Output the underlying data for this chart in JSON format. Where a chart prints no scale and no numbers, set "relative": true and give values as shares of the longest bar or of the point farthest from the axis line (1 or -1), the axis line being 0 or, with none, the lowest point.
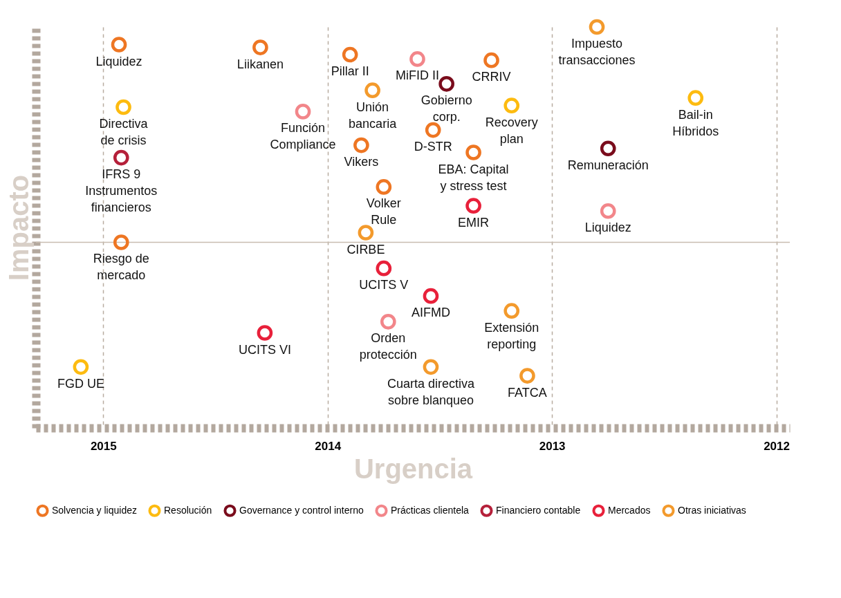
{
  "chart_data": {
    "type": "scatter",
    "relative": true,
    "xlabel": "Urgencia",
    "ylabel": "Impacto",
    "xlim": [
      2015.3,
      2011.94
    ],
    "xticks": [
      2015,
      2014,
      2013,
      2012
    ],
    "grid": "x",
    "legend": "bottom",
    "marker": "circle",
    "series": [
      {
        "name": "Solvencia y liquidez",
        "color": "#ee7623",
        "x": [
          2014.93,
          2014.3,
          2013.9,
          2013.27,
          2013.85,
          2013.53,
          2013.35,
          2013.75,
          2014.92
        ],
        "values": [
          0.956,
          0.949,
          0.931,
          0.917,
          0.705,
          0.743,
          0.687,
          0.601,
          0.463
        ]
      },
      {
        "name": "Resolución",
        "color": "#fdbb10",
        "x": [
          2014.91,
          2013.18,
          2012.36,
          2015.1
        ],
        "values": [
          0.8,
          0.804,
          0.823,
          0.152
        ]
      },
      {
        "name": "Governance y control interno",
        "color": "#7a0c1c",
        "x": [
          2013.47,
          2012.75
        ],
        "values": [
          0.858,
          0.697
        ]
      },
      {
        "name": "Prácticas clientela",
        "color": "#f2868a",
        "x": [
          2013.6,
          2014.11,
          2012.75,
          2013.73
        ],
        "values": [
          0.92,
          0.789,
          0.541,
          0.265
        ]
      },
      {
        "name": "Financiero contable",
        "color": "#b5203a",
        "x": [
          2014.92
        ],
        "values": [
          0.674
        ]
      },
      {
        "name": "Mercados",
        "color": "#e8203a",
        "x": [
          2013.35,
          2013.75,
          2013.54,
          2014.28
        ],
        "values": [
          0.554,
          0.398,
          0.329,
          0.237
        ]
      },
      {
        "name": "Otras iniciativas",
        "color": "#f39a2c",
        "x": [
          2012.8,
          2013.8,
          2013.83,
          2013.18,
          2013.54,
          2013.11
        ],
        "values": [
          1.0,
          0.842,
          0.487,
          0.292,
          0.152,
          0.13
        ]
      }
    ],
    "ref_lines": [
      {
        "axis": "y",
        "value": 0.463,
        "color": "#c8bcb0"
      }
    ],
    "annotations": [
      {
        "text": "Liquidez",
        "x": 2014.93,
        "y": 0.956
      },
      {
        "text": "Liikanen",
        "x": 2014.3,
        "y": 0.949
      },
      {
        "text": "Pillar II",
        "x": 2013.9,
        "y": 0.931
      },
      {
        "text": "CRRIV",
        "x": 2013.27,
        "y": 0.917
      },
      {
        "text": "Vikers",
        "x": 2013.85,
        "y": 0.705
      },
      {
        "text": "D-STR",
        "x": 2013.53,
        "y": 0.743
      },
      {
        "text": "EBA: Capital\ny stress test",
        "x": 2013.35,
        "y": 0.687
      },
      {
        "text": "Volker\nRule",
        "x": 2013.75,
        "y": 0.601
      },
      {
        "text": "Riesgo de\nmercado",
        "x": 2014.92,
        "y": 0.463
      },
      {
        "text": "Directiva\nde crisis",
        "x": 2014.91,
        "y": 0.8
      },
      {
        "text": "Recovery\nplan",
        "x": 2013.18,
        "y": 0.804
      },
      {
        "text": "Bail-in\nHíbridos",
        "x": 2012.36,
        "y": 0.823
      },
      {
        "text": "FGD UE",
        "x": 2015.1,
        "y": 0.152
      },
      {
        "text": "Gobierno\ncorp.",
        "x": 2013.47,
        "y": 0.858
      },
      {
        "text": "Remuneración",
        "x": 2012.75,
        "y": 0.697
      },
      {
        "text": "MiFID II",
        "x": 2013.6,
        "y": 0.92
      },
      {
        "text": "Función\nCompliance",
        "x": 2014.11,
        "y": 0.789
      },
      {
        "text": "Liquidez",
        "x": 2012.75,
        "y": 0.541
      },
      {
        "text": "Orden\nprotección",
        "x": 2013.73,
        "y": 0.265
      },
      {
        "text": "IFRS 9\nInstrumentos\nfinancieros",
        "x": 2014.92,
        "y": 0.674
      },
      {
        "text": "EMIR",
        "x": 2013.35,
        "y": 0.554
      },
      {
        "text": "UCITS V",
        "x": 2013.75,
        "y": 0.398
      },
      {
        "text": "AIFMD",
        "x": 2013.54,
        "y": 0.329
      },
      {
        "text": "UCITS VI",
        "x": 2014.28,
        "y": 0.237
      },
      {
        "text": "Impuesto\ntransacciones",
        "x": 2012.8,
        "y": 1.0
      },
      {
        "text": "Unión\nbancaria",
        "x": 2013.8,
        "y": 0.842
      },
      {
        "text": "CIRBE",
        "x": 2013.83,
        "y": 0.487
      },
      {
        "text": "Extensión\nreporting",
        "x": 2013.18,
        "y": 0.292
      },
      {
        "text": "Cuarta directiva\nsobre blanqueo",
        "x": 2013.54,
        "y": 0.152
      },
      {
        "text": "FATCA",
        "x": 2013.11,
        "y": 0.13
      }
    ]
  }
}
